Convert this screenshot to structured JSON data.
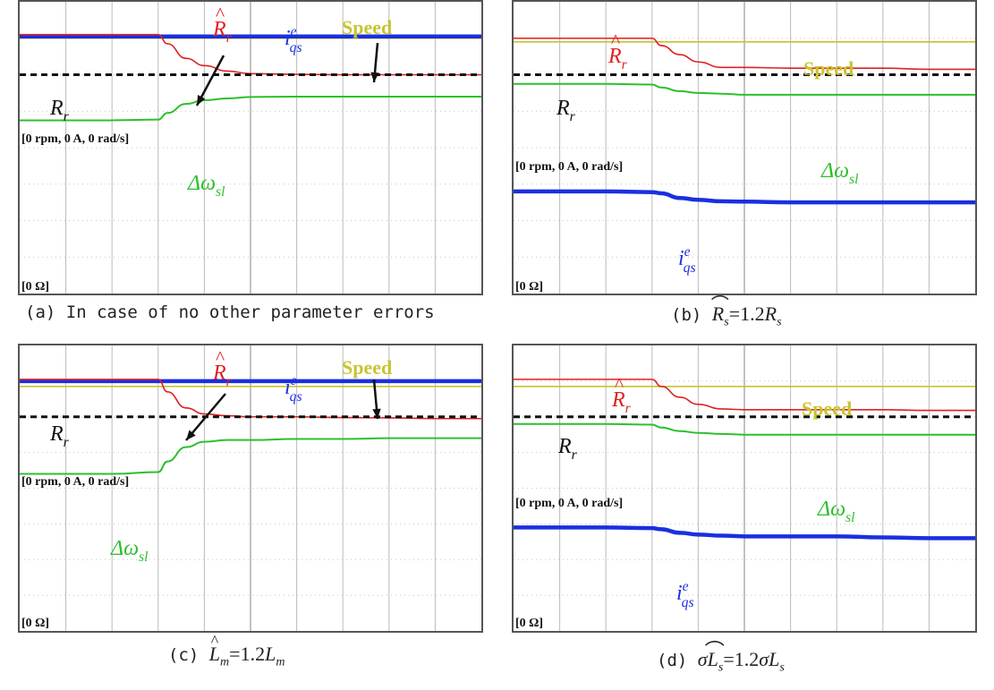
{
  "figure": {
    "captions": [
      {
        "label": "(a)",
        "text": "In case of no other parameter errors"
      },
      {
        "label": "(b)",
        "lhs": "R",
        "lhs_sub": "s",
        "eq": "=1.2",
        "rhs": "R",
        "rhs_sub": "s"
      },
      {
        "label": "(c)",
        "lhs": "L",
        "lhs_sub": "m",
        "eq": "=1.2",
        "rhs": "L",
        "rhs_sub": "m"
      },
      {
        "label": "(d)",
        "lhs": "σL",
        "lhs_sub": "s",
        "eq": "=1.2",
        "rhs": "σL",
        "rhs_sub": "s"
      }
    ]
  },
  "chart_data": [
    {
      "type": "line",
      "panel": "a",
      "x_divisions": 10,
      "y_divisions": 8,
      "x": [
        0,
        1,
        2,
        3,
        3.2,
        3.6,
        4,
        4.5,
        5,
        6,
        7,
        8,
        9,
        10
      ],
      "series": [
        {
          "name": "Speed",
          "color": "#c8c430",
          "values": [
            7.0,
            7.0,
            7.0,
            7.0,
            7.0,
            7.0,
            7.0,
            7.0,
            7.0,
            7.0,
            7.0,
            7.0,
            7.0,
            7.0
          ]
        },
        {
          "name": "i_qs^e",
          "color": "#1a2fe0",
          "values": [
            7.05,
            7.05,
            7.05,
            7.05,
            7.05,
            7.05,
            7.05,
            7.05,
            7.05,
            7.05,
            7.05,
            7.05,
            7.05,
            7.05
          ]
        },
        {
          "name": "R̂_r",
          "color": "#e02020",
          "values": [
            7.1,
            7.1,
            7.1,
            7.1,
            6.85,
            6.45,
            6.25,
            6.1,
            6.03,
            6.01,
            6.0,
            6.0,
            6.0,
            6.0
          ]
        },
        {
          "name": "R_r",
          "color": "#111111",
          "dashed": true,
          "values": [
            6.0,
            6.0,
            6.0,
            6.0,
            6.0,
            6.0,
            6.0,
            6.0,
            6.0,
            6.0,
            6.0,
            6.0,
            6.0,
            6.0
          ]
        },
        {
          "name": "Δω_sl",
          "color": "#2cc02c",
          "values": [
            4.75,
            4.75,
            4.75,
            4.77,
            4.95,
            5.2,
            5.3,
            5.35,
            5.39,
            5.4,
            5.4,
            5.4,
            5.4,
            5.4
          ]
        }
      ],
      "labels": [
        {
          "text": "R",
          "sub": "r",
          "hat": true,
          "color": "#e02020"
        },
        {
          "text": "i",
          "sub": "qs",
          "sup": "e",
          "color": "#1a2fe0"
        },
        {
          "text": "Speed",
          "bold": true,
          "color": "#c8c430"
        },
        {
          "text": "R",
          "sub": "r",
          "color": "#111111"
        },
        {
          "text": "Δω",
          "sub": "sl",
          "color": "#2cc02c"
        },
        {
          "text": "[0 rpm, 0 A, 0 rad/s]",
          "bold": true,
          "color": "#111111"
        },
        {
          "text": "[0 Ω]",
          "bold": true,
          "color": "#111111"
        }
      ]
    },
    {
      "type": "line",
      "panel": "b",
      "x_divisions": 10,
      "y_divisions": 8,
      "x": [
        0,
        1,
        2,
        3,
        3.2,
        3.6,
        4,
        4.5,
        5,
        6,
        7,
        8,
        9,
        10
      ],
      "series": [
        {
          "name": "Speed",
          "color": "#c8c430",
          "values": [
            6.9,
            6.9,
            6.9,
            6.9,
            6.9,
            6.9,
            6.9,
            6.9,
            6.9,
            6.9,
            6.9,
            6.9,
            6.9,
            6.9
          ]
        },
        {
          "name": "R̂_r",
          "color": "#e02020",
          "values": [
            7.0,
            7.0,
            7.0,
            7.0,
            6.8,
            6.55,
            6.35,
            6.2,
            6.2,
            6.18,
            6.18,
            6.18,
            6.15,
            6.15
          ]
        },
        {
          "name": "R_r",
          "color": "#111111",
          "dashed": true,
          "values": [
            6.0,
            6.0,
            6.0,
            6.0,
            6.0,
            6.0,
            6.0,
            6.0,
            6.0,
            6.0,
            6.0,
            6.0,
            6.0,
            6.0
          ]
        },
        {
          "name": "Δω_sl",
          "color": "#2cc02c",
          "values": [
            5.75,
            5.75,
            5.75,
            5.73,
            5.65,
            5.55,
            5.5,
            5.48,
            5.45,
            5.45,
            5.45,
            5.45,
            5.45,
            5.45
          ]
        },
        {
          "name": "i_qs^e",
          "color": "#1a2fe0",
          "values": [
            2.8,
            2.8,
            2.8,
            2.78,
            2.75,
            2.62,
            2.57,
            2.53,
            2.52,
            2.5,
            2.5,
            2.5,
            2.5,
            2.5
          ]
        }
      ],
      "labels": [
        {
          "text": "R",
          "sub": "r",
          "hat": true,
          "color": "#e02020"
        },
        {
          "text": "Speed",
          "bold": true,
          "color": "#c8c430"
        },
        {
          "text": "R",
          "sub": "r",
          "color": "#111111"
        },
        {
          "text": "Δω",
          "sub": "sl",
          "color": "#2cc02c"
        },
        {
          "text": "i",
          "sub": "qs",
          "sup": "e",
          "color": "#1a2fe0"
        },
        {
          "text": "[0 rpm, 0 A, 0 rad/s]",
          "bold": true,
          "color": "#111111"
        },
        {
          "text": "[0 Ω]",
          "bold": true,
          "color": "#111111"
        }
      ]
    },
    {
      "type": "line",
      "panel": "c",
      "x_divisions": 10,
      "y_divisions": 8,
      "x": [
        0,
        1,
        2,
        3,
        3.2,
        3.6,
        4,
        4.5,
        5,
        6,
        7,
        8,
        9,
        10
      ],
      "series": [
        {
          "name": "Speed",
          "color": "#c8c430",
          "values": [
            6.85,
            6.85,
            6.85,
            6.85,
            6.85,
            6.85,
            6.85,
            6.85,
            6.85,
            6.85,
            6.85,
            6.85,
            6.85,
            6.85
          ]
        },
        {
          "name": "i_qs^e",
          "color": "#1a2fe0",
          "values": [
            7.0,
            7.0,
            7.0,
            7.0,
            7.0,
            7.0,
            7.0,
            7.0,
            7.0,
            7.0,
            7.0,
            7.0,
            7.0,
            7.0
          ]
        },
        {
          "name": "R̂_r",
          "color": "#e02020",
          "values": [
            7.05,
            7.05,
            7.05,
            7.05,
            6.7,
            6.25,
            6.08,
            6.03,
            6.0,
            6.0,
            5.98,
            5.97,
            5.95,
            5.95
          ]
        },
        {
          "name": "R_r",
          "color": "#111111",
          "dashed": true,
          "values": [
            6.0,
            6.0,
            6.0,
            6.0,
            6.0,
            6.0,
            6.0,
            6.0,
            6.0,
            6.0,
            6.0,
            6.0,
            6.0,
            6.0
          ]
        },
        {
          "name": "Δω_sl",
          "color": "#2cc02c",
          "values": [
            4.4,
            4.4,
            4.4,
            4.45,
            4.75,
            5.15,
            5.3,
            5.35,
            5.35,
            5.38,
            5.38,
            5.4,
            5.4,
            5.4
          ]
        }
      ],
      "labels": [
        {
          "text": "R",
          "sub": "r",
          "hat": true,
          "color": "#e02020"
        },
        {
          "text": "i",
          "sub": "qs",
          "sup": "e",
          "color": "#1a2fe0"
        },
        {
          "text": "Speed",
          "bold": true,
          "color": "#c8c430"
        },
        {
          "text": "R",
          "sub": "r",
          "color": "#111111"
        },
        {
          "text": "Δω",
          "sub": "sl",
          "color": "#2cc02c"
        },
        {
          "text": "[0 rpm, 0 A, 0 rad/s]",
          "bold": true,
          "color": "#111111"
        },
        {
          "text": "[0 Ω]",
          "bold": true,
          "color": "#111111"
        }
      ]
    },
    {
      "type": "line",
      "panel": "d",
      "x_divisions": 10,
      "y_divisions": 8,
      "x": [
        0,
        1,
        2,
        3,
        3.2,
        3.6,
        4,
        4.5,
        5,
        6,
        7,
        8,
        9,
        10
      ],
      "series": [
        {
          "name": "Speed",
          "color": "#c8c430",
          "values": [
            6.85,
            6.85,
            6.85,
            6.85,
            6.85,
            6.85,
            6.85,
            6.85,
            6.85,
            6.85,
            6.85,
            6.85,
            6.85,
            6.85
          ]
        },
        {
          "name": "R̂_r",
          "color": "#e02020",
          "values": [
            7.05,
            7.05,
            7.05,
            7.05,
            6.85,
            6.55,
            6.35,
            6.22,
            6.2,
            6.2,
            6.2,
            6.2,
            6.18,
            6.18
          ]
        },
        {
          "name": "R_r",
          "color": "#111111",
          "dashed": true,
          "values": [
            6.0,
            6.0,
            6.0,
            6.0,
            6.0,
            6.0,
            6.0,
            6.0,
            6.0,
            6.0,
            6.0,
            6.0,
            6.0,
            6.0
          ]
        },
        {
          "name": "Δω_sl",
          "color": "#2cc02c",
          "values": [
            5.8,
            5.8,
            5.8,
            5.78,
            5.7,
            5.6,
            5.55,
            5.52,
            5.5,
            5.5,
            5.5,
            5.5,
            5.5,
            5.5
          ]
        },
        {
          "name": "i_qs^e",
          "color": "#1a2fe0",
          "values": [
            2.9,
            2.9,
            2.9,
            2.88,
            2.85,
            2.75,
            2.7,
            2.67,
            2.65,
            2.65,
            2.65,
            2.62,
            2.6,
            2.6
          ]
        }
      ],
      "labels": [
        {
          "text": "R",
          "sub": "r",
          "hat": true,
          "color": "#e02020"
        },
        {
          "text": "Speed",
          "bold": true,
          "color": "#c8c430"
        },
        {
          "text": "R",
          "sub": "r",
          "color": "#111111"
        },
        {
          "text": "Δω",
          "sub": "sl",
          "color": "#2cc02c"
        },
        {
          "text": "i",
          "sub": "qs",
          "sup": "e",
          "color": "#1a2fe0"
        },
        {
          "text": "[0 rpm, 0 A, 0 rad/s]",
          "bold": true,
          "color": "#111111"
        },
        {
          "text": "[0 Ω]",
          "bold": true,
          "color": "#111111"
        }
      ]
    }
  ]
}
